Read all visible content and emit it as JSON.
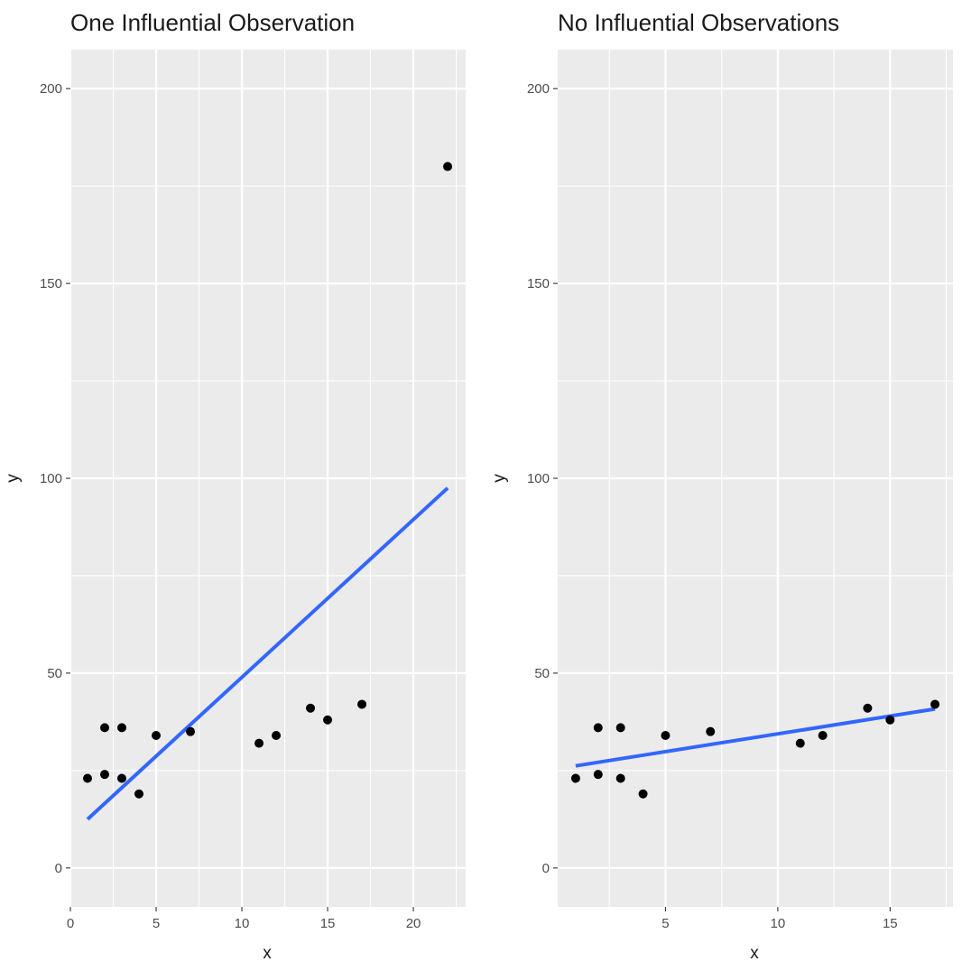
{
  "chart_data": [
    {
      "type": "scatter",
      "title": "One Influential Observation",
      "xlabel": "x",
      "ylabel": "y",
      "xlim": [
        0,
        23.05
      ],
      "ylim": [
        -10,
        210
      ],
      "x_major_ticks": [
        0,
        5,
        10,
        15,
        20
      ],
      "x_minor_ticks": [
        2.5,
        7.5,
        12.5,
        17.5,
        22.5
      ],
      "y_major_ticks": [
        0,
        50,
        100,
        150,
        200
      ],
      "y_minor_ticks": [
        25,
        75,
        125,
        175
      ],
      "grid": true,
      "points": {
        "x": [
          1,
          2,
          2,
          3,
          3,
          4,
          5,
          7,
          11,
          12,
          14,
          15,
          17,
          22
        ],
        "y": [
          23,
          24,
          36,
          23,
          36,
          19,
          34,
          35,
          32,
          34,
          41,
          38,
          42,
          180
        ]
      },
      "fit_line": {
        "x": [
          1,
          22
        ],
        "y": [
          12.5,
          97.5
        ],
        "color": "#3366ff"
      },
      "point_color": "#000000"
    },
    {
      "type": "scatter",
      "title": "No Influential Observations",
      "xlabel": "x",
      "ylabel": "y",
      "xlim": [
        0.2,
        17.8
      ],
      "ylim": [
        -10,
        210
      ],
      "x_major_ticks": [
        5,
        10,
        15
      ],
      "x_minor_ticks": [
        2.5,
        7.5,
        12.5,
        17.5
      ],
      "y_major_ticks": [
        0,
        50,
        100,
        150,
        200
      ],
      "y_minor_ticks": [
        25,
        75,
        125,
        175
      ],
      "grid": true,
      "points": {
        "x": [
          1,
          2,
          2,
          3,
          3,
          4,
          5,
          7,
          11,
          12,
          14,
          15,
          17
        ],
        "y": [
          23,
          24,
          36,
          23,
          36,
          19,
          34,
          35,
          32,
          34,
          41,
          38,
          42
        ]
      },
      "fit_line": {
        "x": [
          1,
          17
        ],
        "y": [
          26.2,
          40.8
        ],
        "color": "#3366ff"
      },
      "point_color": "#000000"
    }
  ]
}
